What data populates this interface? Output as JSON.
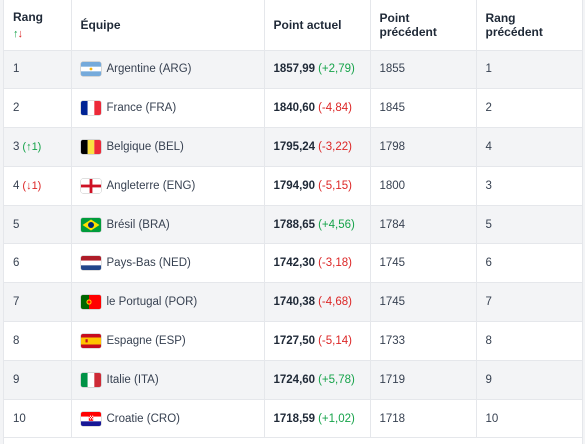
{
  "header": {
    "rank_label": "Rang",
    "rank_up_arrow": "↑",
    "rank_down_arrow": "↓",
    "team_label": "Équipe",
    "current_points_label": "Point actuel",
    "previous_points_label": "Point précédent",
    "previous_rank_label": "Rang précédent"
  },
  "colors": {
    "positive": "#16a34a",
    "negative": "#dc2626"
  },
  "rows": [
    {
      "rank": "1",
      "movement": "",
      "movement_dir": "",
      "flag": "argentina-flag-icon",
      "team": "Argentine (ARG)",
      "points": "1857,99",
      "delta": "(+2,79)",
      "delta_dir": "pos",
      "previous_points": "1855",
      "previous_rank": "1"
    },
    {
      "rank": "2",
      "movement": "",
      "movement_dir": "",
      "flag": "france-flag-icon",
      "team": "France (FRA)",
      "points": "1840,60",
      "delta": "(-4,84)",
      "delta_dir": "neg",
      "previous_points": "1845",
      "previous_rank": "2"
    },
    {
      "rank": "3",
      "movement": "(↑1)",
      "movement_dir": "up",
      "flag": "belgium-flag-icon",
      "team": "Belgique (BEL)",
      "points": "1795,24",
      "delta": "(-3,22)",
      "delta_dir": "neg",
      "previous_points": "1798",
      "previous_rank": "4"
    },
    {
      "rank": "4",
      "movement": "(↓1)",
      "movement_dir": "down",
      "flag": "england-flag-icon",
      "team": "Angleterre (ENG)",
      "points": "1794,90",
      "delta": "(-5,15)",
      "delta_dir": "neg",
      "previous_points": "1800",
      "previous_rank": "3"
    },
    {
      "rank": "5",
      "movement": "",
      "movement_dir": "",
      "flag": "brazil-flag-icon",
      "team": "Brésil (BRA)",
      "points": "1788,65",
      "delta": "(+4,56)",
      "delta_dir": "pos",
      "previous_points": "1784",
      "previous_rank": "5"
    },
    {
      "rank": "6",
      "movement": "",
      "movement_dir": "",
      "flag": "netherlands-flag-icon",
      "team": "Pays-Bas (NED)",
      "points": "1742,30",
      "delta": "(-3,18)",
      "delta_dir": "neg",
      "previous_points": "1745",
      "previous_rank": "6"
    },
    {
      "rank": "7",
      "movement": "",
      "movement_dir": "",
      "flag": "portugal-flag-icon",
      "team": "le Portugal (POR)",
      "points": "1740,38",
      "delta": "(-4,68)",
      "delta_dir": "neg",
      "previous_points": "1745",
      "previous_rank": "7"
    },
    {
      "rank": "8",
      "movement": "",
      "movement_dir": "",
      "flag": "spain-flag-icon",
      "team": "Espagne (ESP)",
      "points": "1727,50",
      "delta": "(-5,14)",
      "delta_dir": "neg",
      "previous_points": "1733",
      "previous_rank": "8"
    },
    {
      "rank": "9",
      "movement": "",
      "movement_dir": "",
      "flag": "italy-flag-icon",
      "team": "Italie (ITA)",
      "points": "1724,60",
      "delta": "(+5,78)",
      "delta_dir": "pos",
      "previous_points": "1719",
      "previous_rank": "9"
    },
    {
      "rank": "10",
      "movement": "",
      "movement_dir": "",
      "flag": "croatia-flag-icon",
      "team": "Croatie (CRO)",
      "points": "1718,59",
      "delta": "(+1,02)",
      "delta_dir": "pos",
      "previous_points": "1718",
      "previous_rank": "10"
    }
  ]
}
